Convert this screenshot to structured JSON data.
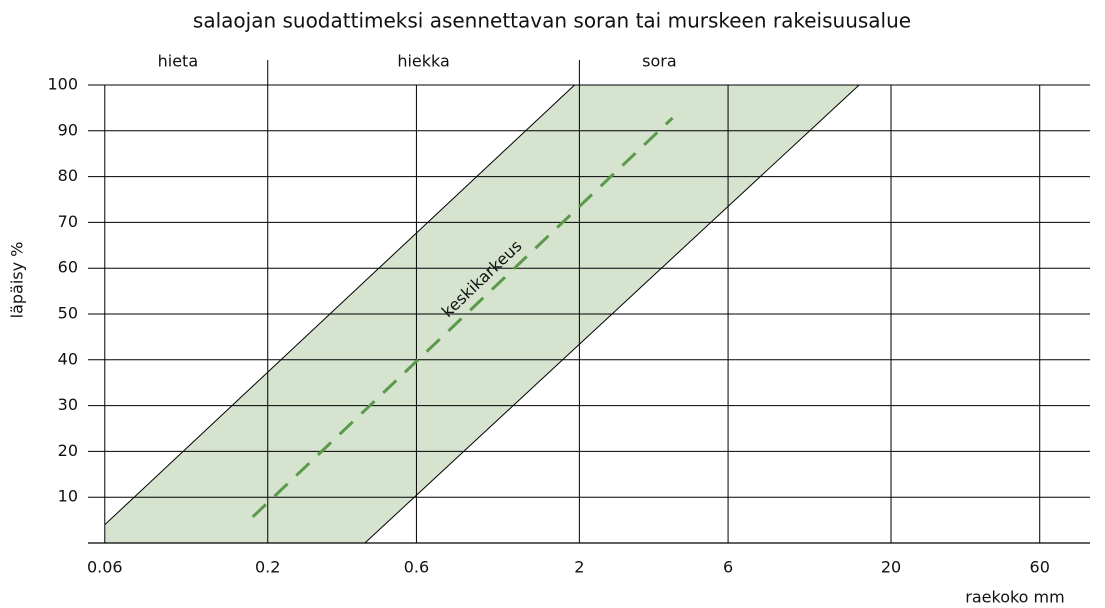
{
  "chart_data": {
    "type": "line",
    "title": "salaojan suodattimeksi asennettavan soran tai murskeen rakeisuusalue",
    "xlabel": "raekoko mm",
    "ylabel": "läpäisy %",
    "xscale": "log",
    "xlim": [
      0.053,
      87
    ],
    "ylim": [
      0,
      100
    ],
    "xticks": [
      0.06,
      0.2,
      0.6,
      2,
      6,
      20,
      60
    ],
    "yticks": [
      10,
      20,
      30,
      40,
      50,
      60,
      70,
      80,
      90,
      100
    ],
    "grid": true,
    "zones": [
      "hieta",
      "hiekka",
      "sora"
    ],
    "zone_bounds": [
      0.2,
      2
    ],
    "band": {
      "color": "#d5e3cf",
      "upper": {
        "x": [
          0.06,
          1.93
        ],
        "values": [
          4,
          100
        ]
      },
      "lower": {
        "x": [
          0.41,
          15.8
        ],
        "values": [
          0,
          100
        ]
      }
    },
    "series": [
      {
        "name": "keskikarkeus",
        "color": "#5a9a4a",
        "dashed": true,
        "x": [
          0.179,
          3.98
        ],
        "values": [
          5.7,
          92.8
        ]
      }
    ]
  }
}
